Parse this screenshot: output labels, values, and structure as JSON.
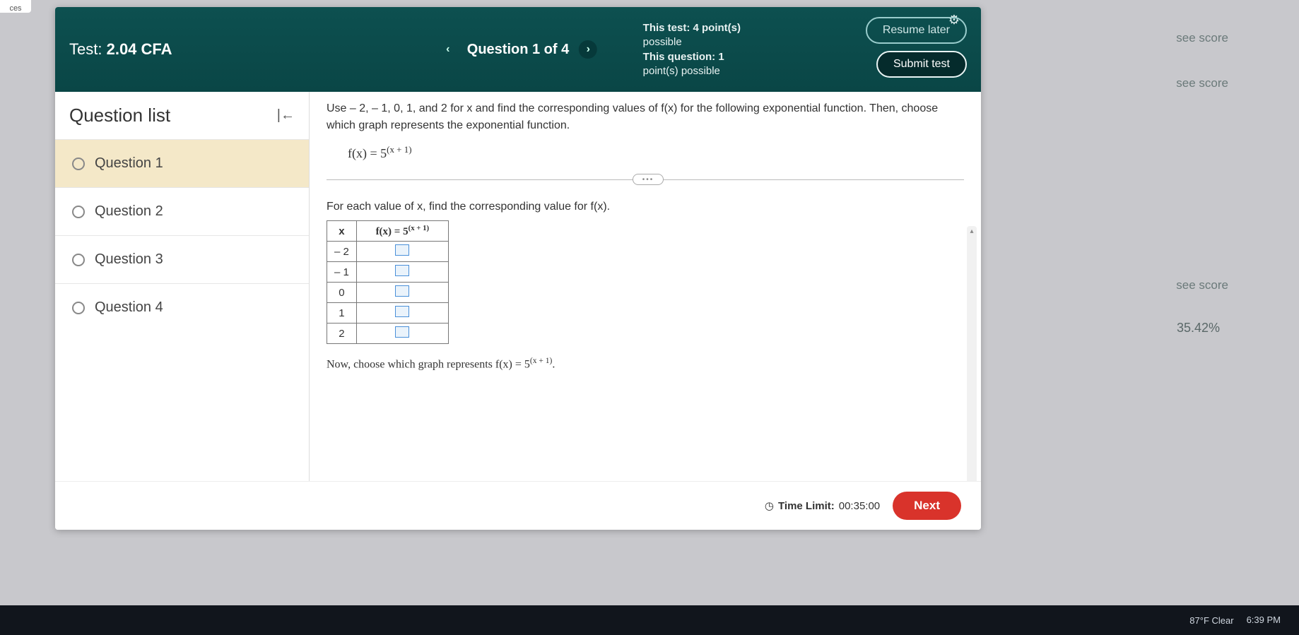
{
  "left_tab": "ces",
  "header": {
    "test_label": "Test:",
    "test_name": "2.04 CFA",
    "nav_prev": "‹",
    "nav_label": "Question 1 of 4",
    "nav_next": "›",
    "meta_line1": "This test: 4 point(s)",
    "meta_line2": "possible",
    "meta_line3": "This question: 1",
    "meta_line4": "point(s) possible",
    "resume_btn": "Resume later",
    "submit_btn": "Submit test"
  },
  "qlist": {
    "title": "Question list",
    "items": [
      {
        "label": "Question 1",
        "active": true
      },
      {
        "label": "Question 2",
        "active": false
      },
      {
        "label": "Question 3",
        "active": false
      },
      {
        "label": "Question 4",
        "active": false
      }
    ]
  },
  "content": {
    "prompt": "Use – 2, – 1, 0, 1, and 2 for x and find the corresponding values of f(x) for the following exponential function. Then, choose which graph represents the exponential function.",
    "fx_display_base": "f(x) = 5",
    "fx_display_exp": "(x + 1)",
    "subprompt": "For each value of x, find the corresponding value for f(x).",
    "table": {
      "col_x": "x",
      "col_fx_base": "f(x) = 5",
      "col_fx_exp": "(x + 1)",
      "rows": [
        "– 2",
        "– 1",
        "0",
        "1",
        "2"
      ]
    },
    "now_line_a": "Now, choose which graph represents f(x) = 5",
    "now_line_exp": "(x + 1)",
    "now_line_b": "."
  },
  "footer": {
    "time_label": "Time Limit:",
    "time_value": "00:35:00",
    "next": "Next"
  },
  "ghosts": {
    "a": "see score",
    "b": "see score",
    "c": "see score",
    "d": "35.42%"
  },
  "taskbar": {
    "weather": "87°F  Clear",
    "time": "6:39 PM"
  },
  "colors": {
    "header_bg": "#0a4a4a",
    "active_item_bg": "#f4e8c8",
    "next_btn_bg": "#d9332b",
    "answer_box_border": "#4a90d9"
  }
}
